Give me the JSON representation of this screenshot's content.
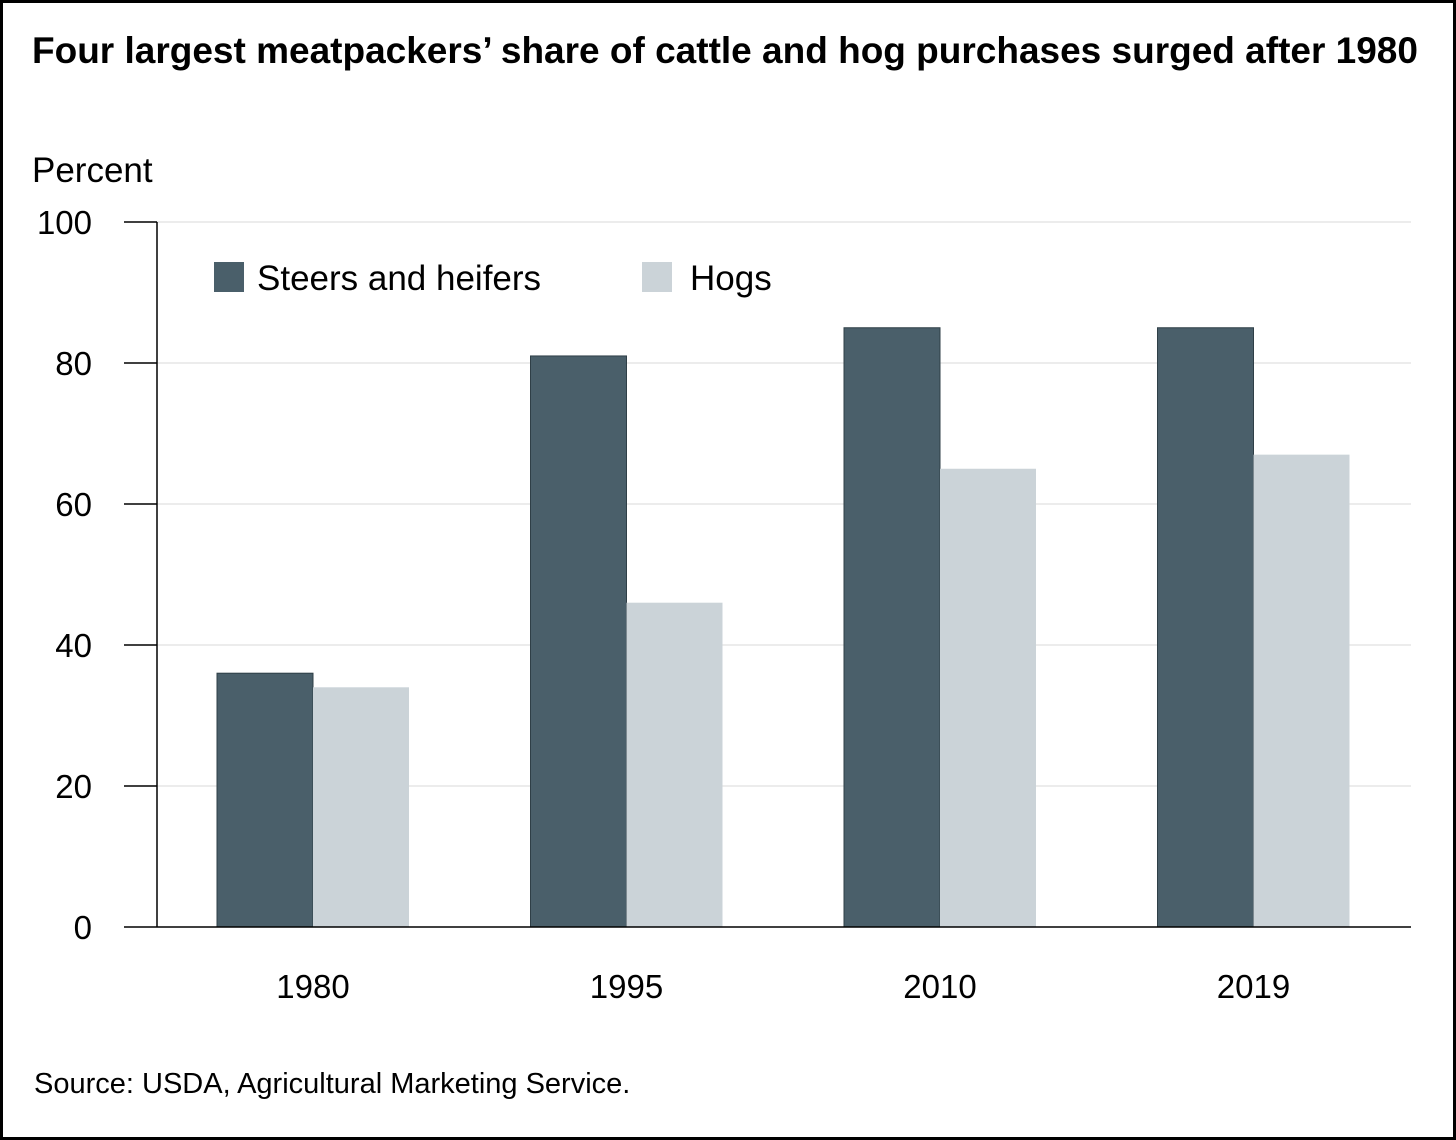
{
  "chart_data": {
    "type": "bar",
    "title": "Four largest meatpackers’ share of cattle and hog purchases surged after 1980",
    "ylabel": "Percent",
    "xlabel": "",
    "categories": [
      "1980",
      "1995",
      "2010",
      "2019"
    ],
    "series": [
      {
        "name": "Steers and heifers",
        "values": [
          36,
          81,
          85,
          85
        ],
        "color": "#4a5f6a"
      },
      {
        "name": "Hogs",
        "values": [
          34,
          46,
          65,
          67
        ],
        "color": "#cbd3d8"
      }
    ],
    "ylim": [
      0,
      100
    ],
    "yticks": [
      0,
      20,
      40,
      60,
      80,
      100
    ],
    "grid": true,
    "legend": "top-left",
    "source": "Source: USDA, Agricultural Marketing Service."
  }
}
